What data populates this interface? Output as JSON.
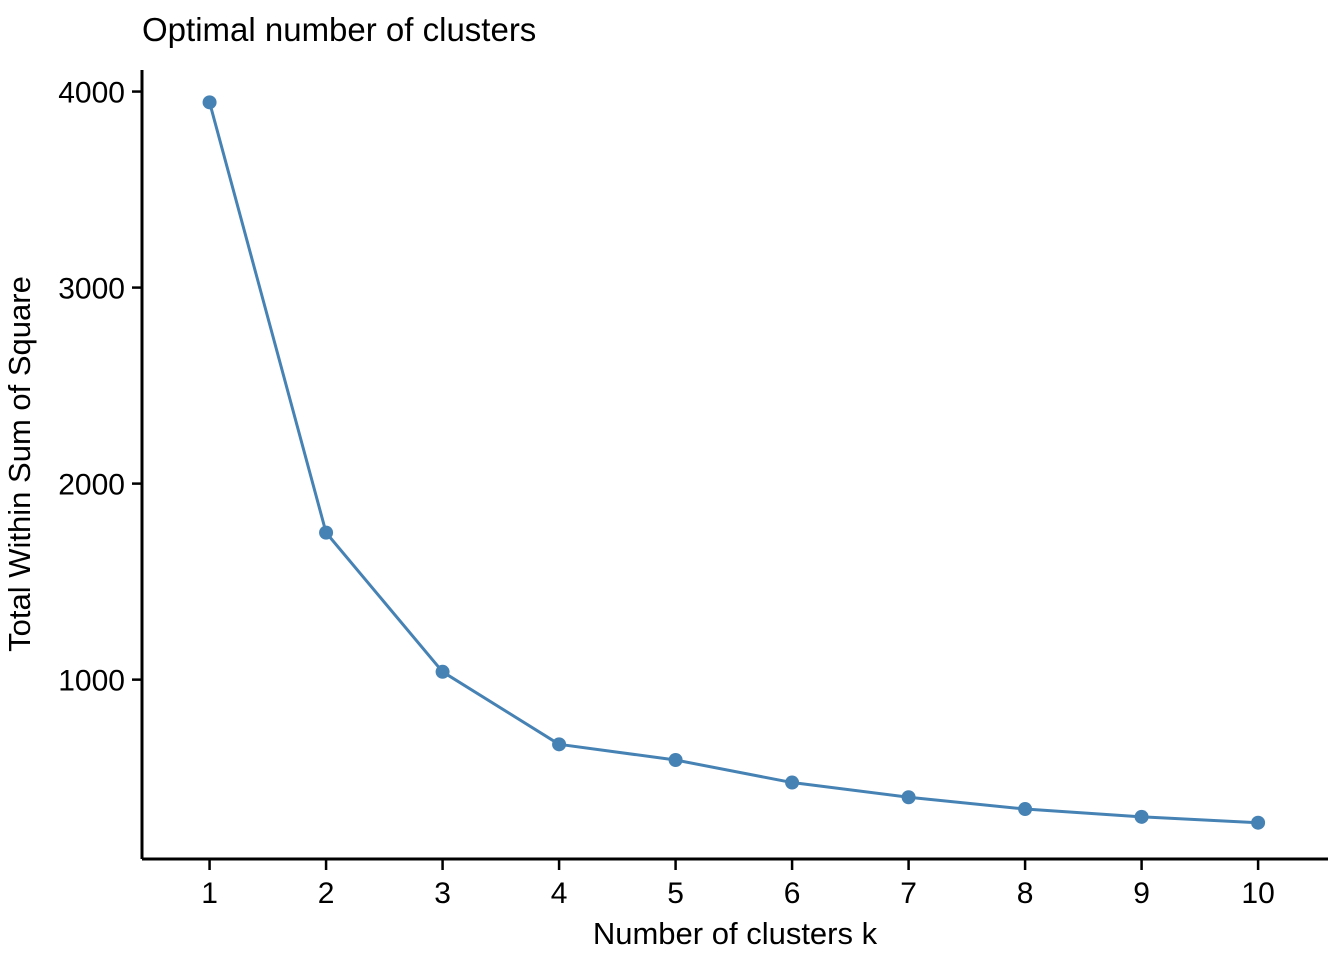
{
  "chart_data": {
    "type": "line",
    "title": "Optimal number of clusters",
    "xlabel": "Number of clusters k",
    "ylabel": "Total Within Sum of Square",
    "x": [
      1,
      2,
      3,
      4,
      5,
      6,
      7,
      8,
      9,
      10
    ],
    "series": [
      {
        "name": "total-within-sum-of-squares",
        "values": [
          3945,
          1750,
          1040,
          670,
          590,
          475,
          400,
          340,
          300,
          270
        ]
      }
    ],
    "x_ticks": [
      1,
      2,
      3,
      4,
      5,
      6,
      7,
      8,
      9,
      10
    ],
    "y_ticks": [
      1000,
      2000,
      3000,
      4000
    ],
    "xlim": [
      0.42,
      10.6
    ],
    "ylim": [
      85,
      4110
    ],
    "grid": false,
    "legend": "none",
    "line_color": "#4682b4",
    "point_color": "#4682b4",
    "axis_color": "#000000",
    "text_color": "#000000",
    "line_width": 3,
    "point_radius": 7
  }
}
